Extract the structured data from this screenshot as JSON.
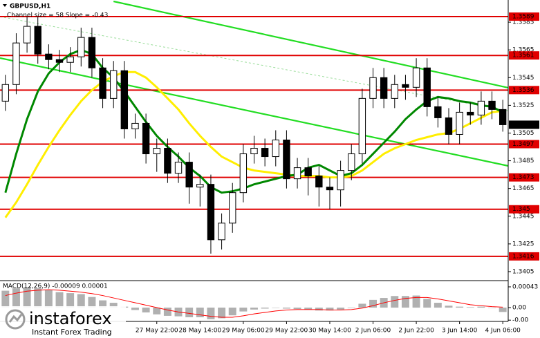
{
  "chart_data": {
    "type": "candlestick",
    "title": "GBPUSD,H1",
    "subtitle": "Channel size = 58 Slope = -0.43",
    "categories": [
      null,
      null,
      null,
      null,
      null,
      null,
      null,
      null,
      null,
      null,
      null,
      null,
      null,
      null,
      "27 May 22:00",
      null,
      null,
      null,
      "28 May 14:00",
      null,
      null,
      null,
      "29 May 06:00",
      null,
      null,
      null,
      "29 May 22:00",
      null,
      null,
      null,
      "30 May 14:00",
      null,
      null,
      null,
      "2 Jun 06:00",
      null,
      null,
      null,
      "2 Jun 22:00",
      null,
      null,
      null,
      "3 Jun 14:00",
      null,
      null,
      null,
      "4 Jun 06:00"
    ],
    "open": [
      1.3528,
      1.354,
      1.357,
      1.3582,
      1.3562,
      1.3558,
      1.3556,
      1.356,
      1.3574,
      1.3552,
      1.353,
      1.355,
      1.3508,
      1.3512,
      1.349,
      1.3494,
      1.3476,
      1.3484,
      1.3466,
      1.3468,
      1.3428,
      1.344,
      1.3462,
      1.349,
      1.3494,
      1.3488,
      1.35,
      1.3472,
      1.348,
      1.3474,
      1.3466,
      1.3464,
      1.3478,
      1.349,
      1.353,
      1.3545,
      1.353,
      1.354,
      1.3538,
      1.3552,
      1.3524,
      1.3516,
      1.3504,
      1.352,
      1.3518,
      1.3528,
      1.3522
    ],
    "high": [
      1.3547,
      1.3577,
      1.3589,
      1.3589,
      1.3569,
      1.3565,
      1.3567,
      1.3581,
      1.3581,
      1.3559,
      1.3557,
      1.3557,
      1.3519,
      1.3519,
      1.3501,
      1.3501,
      1.3491,
      1.3491,
      1.3475,
      1.3475,
      1.3447,
      1.3469,
      1.3497,
      1.3503,
      1.3501,
      1.3507,
      1.3507,
      1.3487,
      1.3487,
      1.3481,
      1.3473,
      1.3485,
      1.3497,
      1.3537,
      1.3552,
      1.3552,
      1.3547,
      1.3547,
      1.3559,
      1.3559,
      1.3531,
      1.3523,
      1.3527,
      1.3527,
      1.3535,
      1.3535,
      1.3529
    ],
    "low": [
      1.3521,
      1.3533,
      1.3563,
      1.3555,
      1.3551,
      1.3549,
      1.3549,
      1.3553,
      1.3545,
      1.3523,
      1.3523,
      1.3501,
      1.3501,
      1.3483,
      1.3477,
      1.3469,
      1.3469,
      1.3454,
      1.3452,
      1.3418,
      1.3421,
      1.3433,
      1.3455,
      1.3483,
      1.3481,
      1.3481,
      1.3465,
      1.3465,
      1.346,
      1.3452,
      1.345,
      1.3452,
      1.3471,
      1.3483,
      1.3523,
      1.3523,
      1.3523,
      1.3529,
      1.3531,
      1.3517,
      1.3509,
      1.3497,
      1.3497,
      1.3511,
      1.3511,
      1.3515,
      1.3506
    ],
    "close": [
      1.354,
      1.357,
      1.3582,
      1.3562,
      1.3558,
      1.3556,
      1.356,
      1.3574,
      1.3552,
      1.353,
      1.355,
      1.3508,
      1.3512,
      1.349,
      1.3494,
      1.3476,
      1.3484,
      1.3466,
      1.3468,
      1.3428,
      1.344,
      1.3462,
      1.349,
      1.3494,
      1.3488,
      1.35,
      1.3472,
      1.348,
      1.3474,
      1.3466,
      1.3464,
      1.3478,
      1.349,
      1.353,
      1.3545,
      1.353,
      1.354,
      1.3538,
      1.3552,
      1.3524,
      1.3516,
      1.3504,
      1.352,
      1.3518,
      1.3528,
      1.3522,
      1.3511
    ],
    "bull_color": "#ffffff",
    "bear_color": "#000000",
    "ylim": [
      1.3399,
      1.3601
    ],
    "yticks": [
      1.3585,
      1.3565,
      1.3545,
      1.3525,
      1.3505,
      1.3485,
      1.3465,
      1.3445,
      1.3425,
      1.3405
    ],
    "levels": {
      "color": "#e00000",
      "values": [
        1.3589,
        1.3561,
        1.3536,
        1.3497,
        1.3473,
        1.345,
        1.3416
      ]
    },
    "current_price": 1.3511,
    "overlays": [
      {
        "color": "#ffee00",
        "values": [
          1.3444,
          1.3455,
          1.3468,
          1.3482,
          1.3495,
          1.3507,
          1.3518,
          1.3528,
          1.3536,
          1.3542,
          1.3546,
          1.3549,
          1.3549,
          1.3545,
          1.3538,
          1.353,
          1.3522,
          1.3512,
          1.3503,
          1.3495,
          1.3488,
          1.3484,
          1.348,
          1.3478,
          1.3477,
          1.3476,
          1.3475,
          1.3474,
          1.3474,
          1.3474,
          1.3473,
          1.3473,
          1.3474,
          1.3478,
          1.3484,
          1.349,
          1.3494,
          1.3497,
          1.35,
          1.3502,
          1.3504,
          1.3505,
          1.3508,
          1.3512,
          1.3516,
          1.352,
          1.3521
        ]
      },
      {
        "color": "#008800",
        "values": [
          1.3462,
          1.349,
          1.3515,
          1.3535,
          1.3548,
          1.3556,
          1.3562,
          1.3565,
          1.3562,
          1.3552,
          1.3545,
          1.3535,
          1.3524,
          1.3513,
          1.3503,
          1.3495,
          1.3488,
          1.348,
          1.3474,
          1.3466,
          1.3462,
          1.3463,
          1.3465,
          1.3468,
          1.347,
          1.3472,
          1.3474,
          1.3475,
          1.348,
          1.3482,
          1.3478,
          1.3474,
          1.3476,
          1.3482,
          1.349,
          1.3498,
          1.3506,
          1.3515,
          1.3522,
          1.3528,
          1.3531,
          1.353,
          1.3528,
          1.3527,
          1.3525,
          1.3524,
          1.352
        ]
      }
    ],
    "trendlines": [
      {
        "color": "#22dd22",
        "dashed": false,
        "x": [
          10,
          46.5
        ],
        "y": [
          1.36,
          1.35377
        ]
      },
      {
        "color": "#22dd22",
        "dashed": false,
        "x": [
          -0.5,
          46.5
        ],
        "y": [
          1.35591,
          1.34813
        ]
      },
      {
        "color": "#99dd99",
        "dashed": true,
        "x": [
          -0.5,
          46.5
        ],
        "y": [
          1.3589,
          1.3521
        ]
      }
    ],
    "macd": {
      "title": "MACD(12,26,9) -0.00009 0.00001",
      "ylim": [
        -0.0003,
        0.00053
      ],
      "yticks": [
        0.00043,
        {
          "value": 0,
          "label": "0.00"
        },
        {
          "value": -0.00026,
          "label": "-0.00"
        }
      ],
      "histogram": {
        "color": "#b0b0b0",
        "values": [
          0.00035,
          0.0004,
          0.00042,
          0.0004,
          0.00036,
          0.00032,
          0.0003,
          0.00028,
          0.00022,
          0.00015,
          0.0001,
          2e-05,
          -5e-05,
          -0.0001,
          -0.00014,
          -0.00017,
          -0.00018,
          -0.0002,
          -0.0002,
          -0.00024,
          -0.00022,
          -0.00016,
          -8e-05,
          -4e-05,
          -2e-05,
          0,
          -2e-05,
          -3e-05,
          -4e-05,
          -6e-05,
          -6e-05,
          -4e-05,
          -1e-05,
          8e-05,
          0.00016,
          0.0002,
          0.00024,
          0.00024,
          0.00025,
          0.00018,
          0.0001,
          4e-05,
          2e-05,
          1e-05,
          2e-05,
          0,
          -9e-05
        ]
      },
      "signal": {
        "color": "#ff0000",
        "values": [
          0.00025,
          0.0003,
          0.00034,
          0.00036,
          0.00037,
          0.00036,
          0.00034,
          0.00032,
          0.00029,
          0.00025,
          0.0002,
          0.00015,
          0.0001,
          5e-05,
          0,
          -5e-05,
          -9e-05,
          -0.00012,
          -0.00015,
          -0.00018,
          -0.0002,
          -0.0002,
          -0.00017,
          -0.00013,
          -0.0001,
          -7e-05,
          -5e-05,
          -4e-05,
          -4e-05,
          -4e-05,
          -5e-05,
          -5e-05,
          -4e-05,
          -1e-05,
          4e-05,
          0.0001,
          0.00015,
          0.00019,
          0.00021,
          0.00021,
          0.00018,
          0.00014,
          0.0001,
          6e-05,
          4e-05,
          2e-05,
          1e-05
        ]
      }
    },
    "watermark": {
      "brand": "instaforex",
      "tagline": "Instant Forex Trading"
    }
  }
}
